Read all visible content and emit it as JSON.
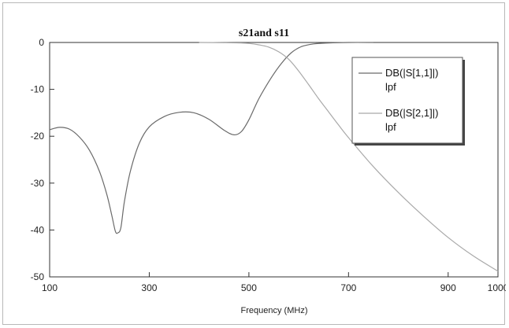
{
  "chart_data": {
    "type": "line",
    "title": "s21and s11",
    "xlabel": "Frequency (MHz)",
    "ylabel": "",
    "xlim": [
      100,
      1000
    ],
    "ylim": [
      -50,
      0
    ],
    "x_ticks": [
      100,
      300,
      500,
      700,
      900,
      1000
    ],
    "y_ticks": [
      0,
      -10,
      -20,
      -30,
      -40,
      -50
    ],
    "grid": false,
    "legend_position": "top-right",
    "colors": {
      "s11": "#6a6a6a",
      "s21": "#a9a9a9",
      "legend_shadow": "#444444"
    },
    "series": [
      {
        "name": "DB(|S[1,1]|)",
        "sub": "lpf",
        "points": [
          [
            100,
            -18.6
          ],
          [
            120,
            -18.1
          ],
          [
            140,
            -18.5
          ],
          [
            160,
            -20.2
          ],
          [
            180,
            -23.0
          ],
          [
            200,
            -27.5
          ],
          [
            215,
            -32.5
          ],
          [
            225,
            -37.0
          ],
          [
            232,
            -40.3
          ],
          [
            237,
            -40.6
          ],
          [
            243,
            -39.5
          ],
          [
            250,
            -34.0
          ],
          [
            262,
            -27.5
          ],
          [
            280,
            -21.5
          ],
          [
            300,
            -18.0
          ],
          [
            330,
            -15.8
          ],
          [
            360,
            -14.9
          ],
          [
            390,
            -15.0
          ],
          [
            420,
            -16.4
          ],
          [
            450,
            -18.7
          ],
          [
            470,
            -19.7
          ],
          [
            485,
            -19.0
          ],
          [
            500,
            -16.5
          ],
          [
            520,
            -12.0
          ],
          [
            545,
            -7.5
          ],
          [
            565,
            -4.5
          ],
          [
            585,
            -2.2
          ],
          [
            605,
            -0.9
          ],
          [
            630,
            -0.3
          ],
          [
            660,
            -0.1
          ],
          [
            700,
            0.0
          ],
          [
            750,
            0.0
          ]
        ]
      },
      {
        "name": "DB(|S[2,1]|)",
        "sub": "lpf",
        "points": [
          [
            400,
            0.0
          ],
          [
            450,
            -0.05
          ],
          [
            480,
            -0.1
          ],
          [
            500,
            -0.2
          ],
          [
            520,
            -0.5
          ],
          [
            540,
            -1.0
          ],
          [
            560,
            -2.0
          ],
          [
            580,
            -3.6
          ],
          [
            600,
            -6.1
          ],
          [
            620,
            -9.0
          ],
          [
            640,
            -12.0
          ],
          [
            660,
            -14.8
          ],
          [
            680,
            -17.6
          ],
          [
            700,
            -20.3
          ],
          [
            750,
            -26.5
          ],
          [
            800,
            -32.0
          ],
          [
            850,
            -37.0
          ],
          [
            900,
            -41.6
          ],
          [
            950,
            -45.5
          ],
          [
            1000,
            -48.8
          ]
        ]
      }
    ]
  }
}
